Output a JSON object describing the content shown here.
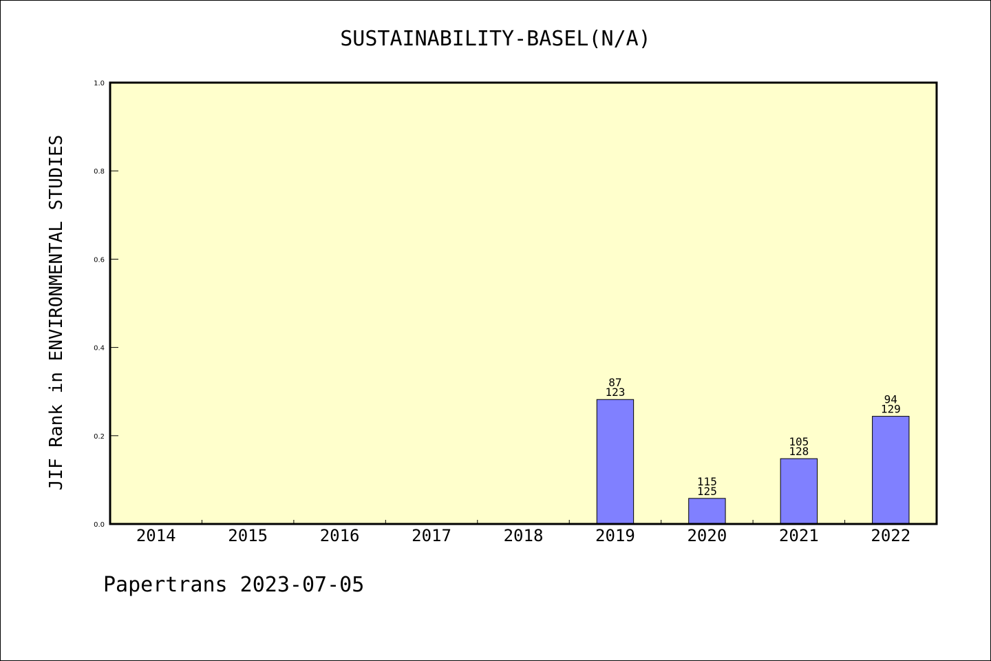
{
  "colors": {
    "plot_background": "#ffffcc",
    "bar_fill": "#8080ff",
    "axis": "#000000"
  },
  "footer": {
    "text": "Papertrans 2023-07-05"
  },
  "chart_data": {
    "type": "bar",
    "title": "SUSTAINABILITY-BASEL(N/A)",
    "xlabel": "",
    "ylabel": "JIF Rank in ENVIRONMENTAL STUDIES",
    "ylim": [
      0,
      1.0
    ],
    "yticks": [
      "0.0",
      "0.2",
      "0.4",
      "0.6",
      "0.8",
      "1.0"
    ],
    "grid": false,
    "categories": [
      "2014",
      "2015",
      "2016",
      "2017",
      "2018",
      "2019",
      "2020",
      "2021",
      "2022"
    ],
    "values": [
      null,
      null,
      null,
      null,
      null,
      0.282,
      0.058,
      0.148,
      0.244
    ],
    "labels": [
      null,
      null,
      null,
      null,
      null,
      [
        "87",
        "123"
      ],
      [
        "115",
        "125"
      ],
      [
        "105",
        "128"
      ],
      [
        "94",
        "129"
      ]
    ]
  }
}
